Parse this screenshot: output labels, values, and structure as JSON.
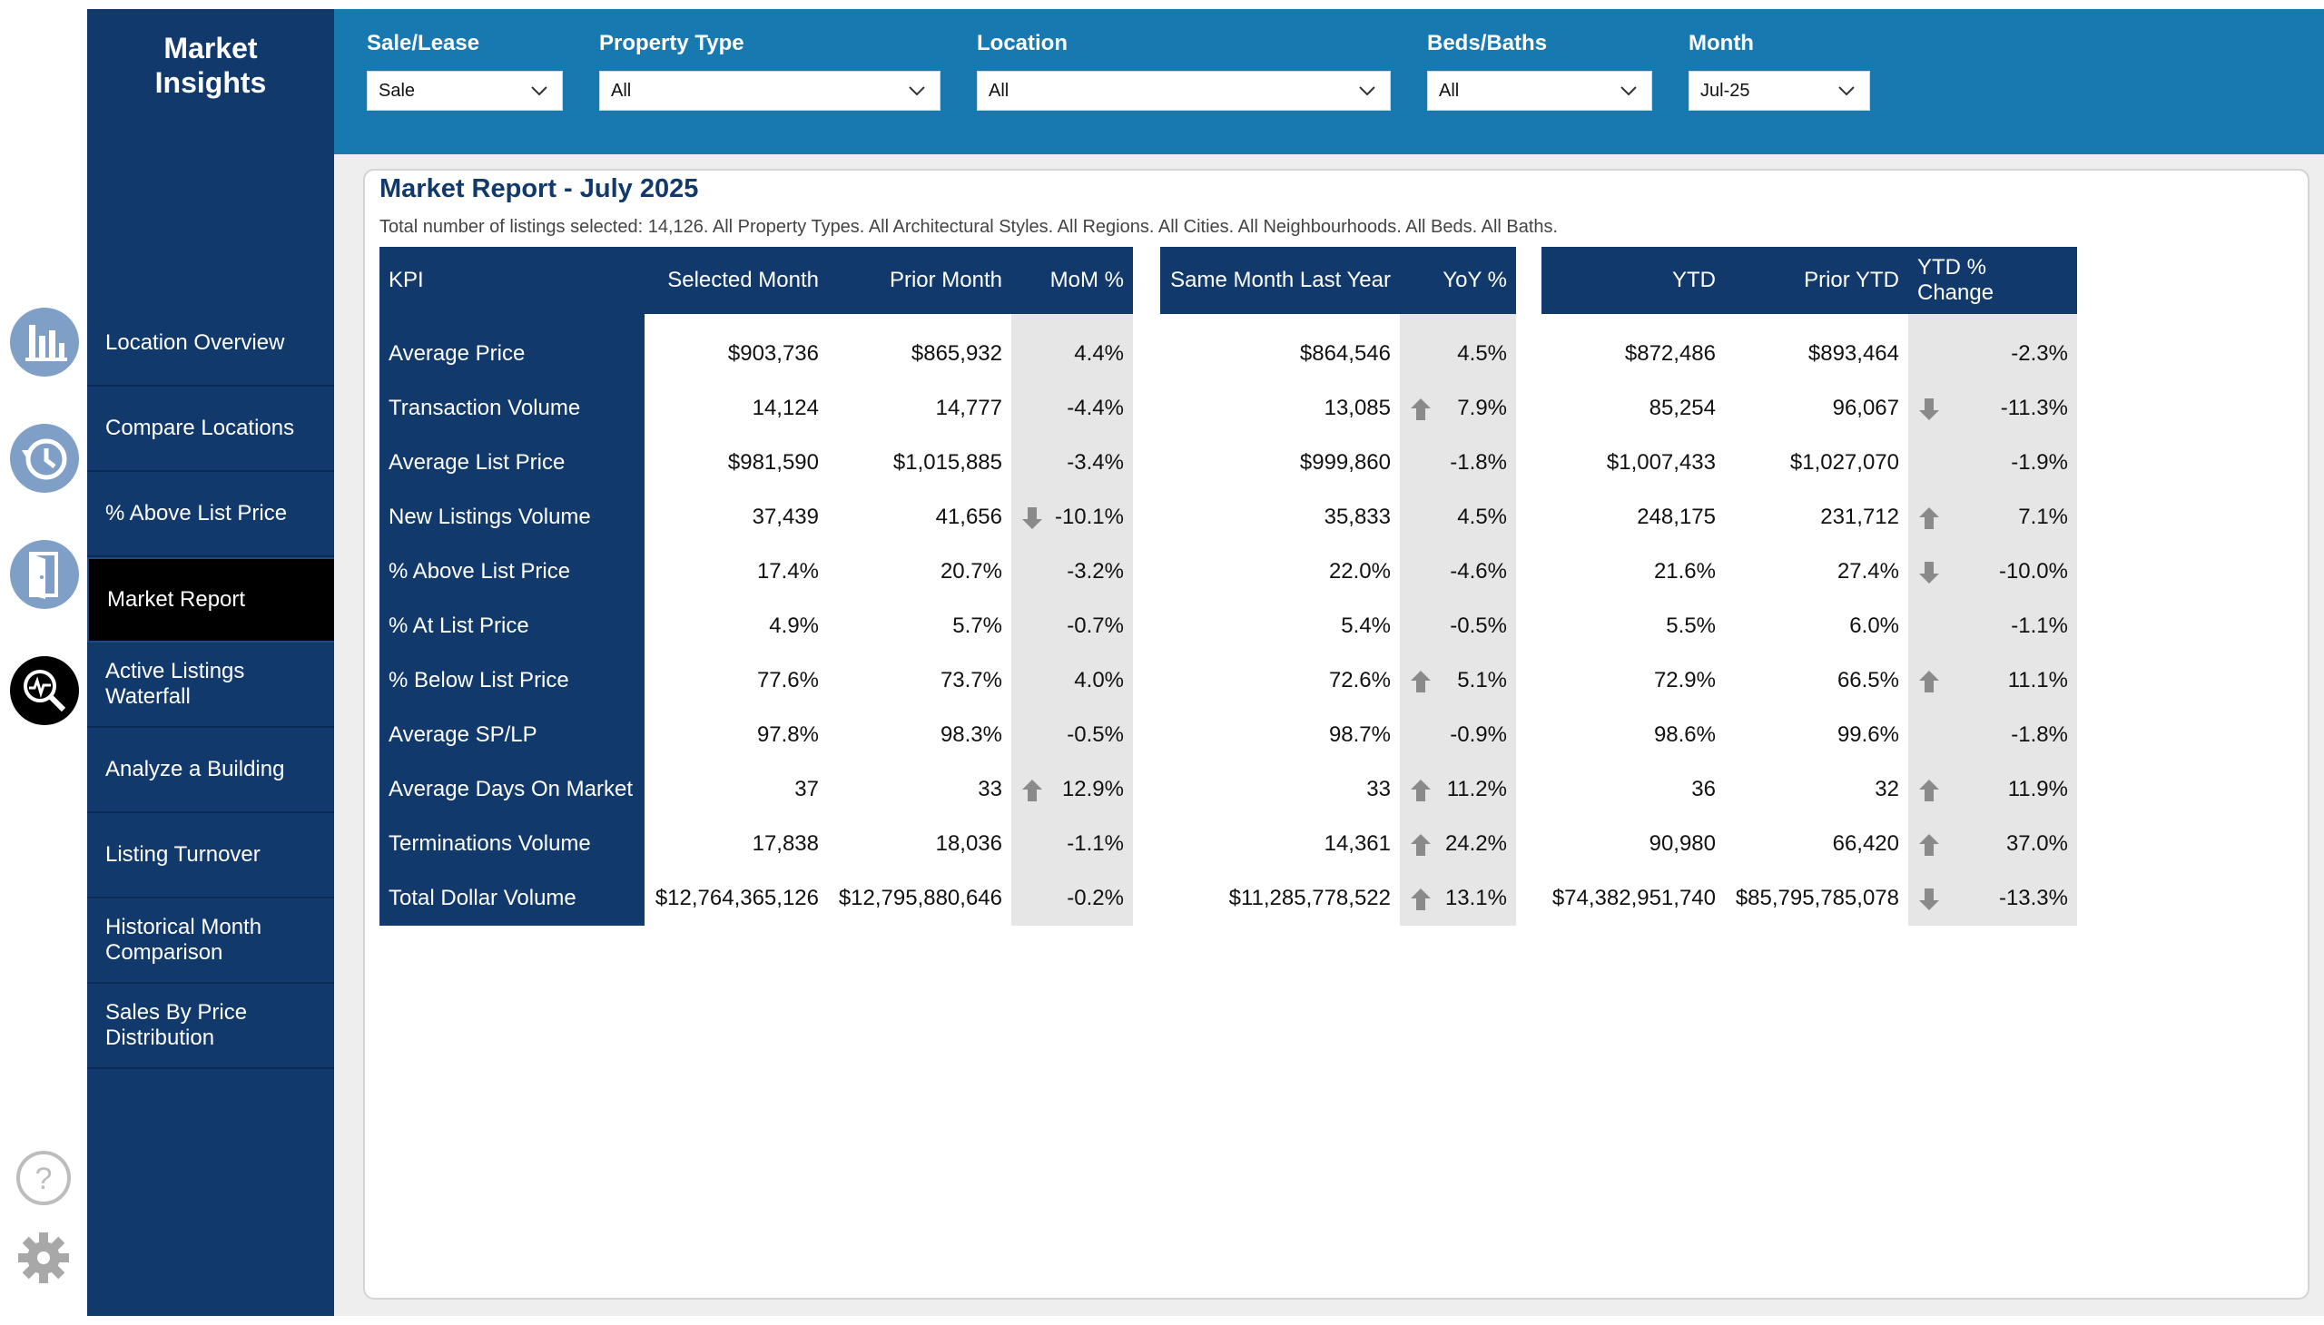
{
  "app": {
    "brand_line1": "Market",
    "brand_line2": "Insights"
  },
  "rail_icons": [
    "bar-chart-icon",
    "history-icon",
    "door-exit-icon",
    "analyze-magnifier-icon",
    "help-icon",
    "gear-icon"
  ],
  "nav": {
    "items": [
      {
        "label": "Location Overview",
        "active": false
      },
      {
        "label": "Compare Locations",
        "active": false
      },
      {
        "label": "% Above List Price",
        "active": false
      },
      {
        "label": "Market Report",
        "active": true
      },
      {
        "label": "Active Listings\nWaterfall",
        "active": false
      },
      {
        "label": "Analyze a Building",
        "active": false
      },
      {
        "label": "Listing Turnover",
        "active": false
      },
      {
        "label": "Historical Month\nComparison",
        "active": false
      },
      {
        "label": "Sales By Price\nDistribution",
        "active": false
      }
    ]
  },
  "filters": [
    {
      "label": "Sale/Lease",
      "value": "Sale"
    },
    {
      "label": "Property Type",
      "value": "All"
    },
    {
      "label": "Location",
      "value": "All"
    },
    {
      "label": "Beds/Baths",
      "value": "All"
    },
    {
      "label": "Month",
      "value": "Jul-25"
    }
  ],
  "report": {
    "title": "Market Report - July 2025",
    "subtitle": "Total number of listings selected: 14,126. All Property Types. All Architectural Styles. All Regions. All Cities. All Neighbourhoods. All Beds. All Baths.",
    "headers": {
      "kpi": "KPI",
      "selected_month": "Selected Month",
      "prior_month": "Prior Month",
      "mom": "MoM %",
      "same_month_last_year": "Same Month Last Year",
      "yoy": "YoY %",
      "ytd": "YTD",
      "prior_ytd": "Prior YTD",
      "ytd_change": "YTD % Change"
    },
    "rows": [
      {
        "kpi": "Average Price",
        "sel": "$903,736",
        "prior": "$865,932",
        "mom": "4.4%",
        "mom_arrow": "",
        "same": "$864,546",
        "yoy": "4.5%",
        "yoy_arrow": "",
        "ytd": "$872,486",
        "prior_ytd": "$893,464",
        "ytd_chg": "-2.3%",
        "ytd_arrow": ""
      },
      {
        "kpi": "Transaction Volume",
        "sel": "14,124",
        "prior": "14,777",
        "mom": "-4.4%",
        "mom_arrow": "",
        "same": "13,085",
        "yoy": "7.9%",
        "yoy_arrow": "up",
        "ytd": "85,254",
        "prior_ytd": "96,067",
        "ytd_chg": "-11.3%",
        "ytd_arrow": "down"
      },
      {
        "kpi": "Average List Price",
        "sel": "$981,590",
        "prior": "$1,015,885",
        "mom": "-3.4%",
        "mom_arrow": "",
        "same": "$999,860",
        "yoy": "-1.8%",
        "yoy_arrow": "",
        "ytd": "$1,007,433",
        "prior_ytd": "$1,027,070",
        "ytd_chg": "-1.9%",
        "ytd_arrow": ""
      },
      {
        "kpi": "New Listings Volume",
        "sel": "37,439",
        "prior": "41,656",
        "mom": "-10.1%",
        "mom_arrow": "down",
        "same": "35,833",
        "yoy": "4.5%",
        "yoy_arrow": "",
        "ytd": "248,175",
        "prior_ytd": "231,712",
        "ytd_chg": "7.1%",
        "ytd_arrow": "up"
      },
      {
        "kpi": "% Above List Price",
        "sel": "17.4%",
        "prior": "20.7%",
        "mom": "-3.2%",
        "mom_arrow": "",
        "same": "22.0%",
        "yoy": "-4.6%",
        "yoy_arrow": "",
        "ytd": "21.6%",
        "prior_ytd": "27.4%",
        "ytd_chg": "-10.0%",
        "ytd_arrow": "down"
      },
      {
        "kpi": "% At List Price",
        "sel": "4.9%",
        "prior": "5.7%",
        "mom": "-0.7%",
        "mom_arrow": "",
        "same": "5.4%",
        "yoy": "-0.5%",
        "yoy_arrow": "",
        "ytd": "5.5%",
        "prior_ytd": "6.0%",
        "ytd_chg": "-1.1%",
        "ytd_arrow": ""
      },
      {
        "kpi": "% Below List Price",
        "sel": "77.6%",
        "prior": "73.7%",
        "mom": "4.0%",
        "mom_arrow": "",
        "same": "72.6%",
        "yoy": "5.1%",
        "yoy_arrow": "up",
        "ytd": "72.9%",
        "prior_ytd": "66.5%",
        "ytd_chg": "11.1%",
        "ytd_arrow": "up"
      },
      {
        "kpi": "Average SP/LP",
        "sel": "97.8%",
        "prior": "98.3%",
        "mom": "-0.5%",
        "mom_arrow": "",
        "same": "98.7%",
        "yoy": "-0.9%",
        "yoy_arrow": "",
        "ytd": "98.6%",
        "prior_ytd": "99.6%",
        "ytd_chg": "-1.8%",
        "ytd_arrow": ""
      },
      {
        "kpi": "Average Days On Market",
        "sel": "37",
        "prior": "33",
        "mom": "12.9%",
        "mom_arrow": "up",
        "same": "33",
        "yoy": "11.2%",
        "yoy_arrow": "up",
        "ytd": "36",
        "prior_ytd": "32",
        "ytd_chg": "11.9%",
        "ytd_arrow": "up"
      },
      {
        "kpi": "Terminations Volume",
        "sel": "17,838",
        "prior": "18,036",
        "mom": "-1.1%",
        "mom_arrow": "",
        "same": "14,361",
        "yoy": "24.2%",
        "yoy_arrow": "up",
        "ytd": "90,980",
        "prior_ytd": "66,420",
        "ytd_chg": "37.0%",
        "ytd_arrow": "up"
      },
      {
        "kpi": "Total Dollar Volume",
        "sel": "$12,764,365,126",
        "prior": "$12,795,880,646",
        "mom": "-0.2%",
        "mom_arrow": "",
        "same": "$11,285,778,522",
        "yoy": "13.1%",
        "yoy_arrow": "up",
        "ytd": "$74,382,951,740",
        "prior_ytd": "$85,795,785,078",
        "ytd_chg": "-13.3%",
        "ytd_arrow": "down"
      }
    ]
  },
  "colors": {
    "navy": "#12396b",
    "topbar": "#1878b0",
    "pct_bg": "#e6e6e6",
    "arrow": "#777777"
  }
}
